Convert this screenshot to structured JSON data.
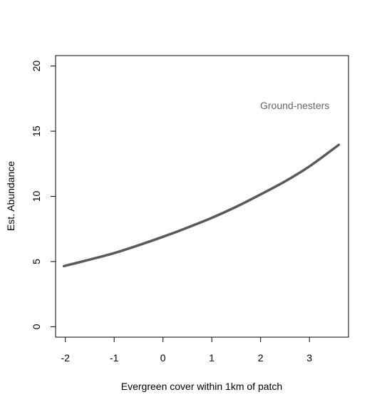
{
  "chart_data": {
    "type": "line",
    "title": "",
    "xlabel": "Evergreen cover within 1km of patch",
    "ylabel": "Est. Abundance",
    "xlim": [
      -2.2,
      3.8
    ],
    "ylim": [
      -0.8,
      20.8
    ],
    "x_ticks": [
      -2,
      -1,
      0,
      1,
      2,
      3
    ],
    "y_ticks": [
      0,
      5,
      10,
      15,
      20
    ],
    "x_tick_labels": [
      "-2",
      "-1",
      "0",
      "1",
      "2",
      "3"
    ],
    "y_tick_labels": [
      "0",
      "5",
      "10",
      "15",
      "20"
    ],
    "grid": false,
    "annotation": {
      "text": "Ground-nesters",
      "x": 2.7,
      "y": 16.7
    },
    "series": [
      {
        "line_color": "#5a5a5a",
        "x": [
          -2.03,
          -1.5,
          -1.0,
          -0.5,
          0.0,
          0.5,
          1.0,
          1.5,
          2.0,
          2.5,
          3.0,
          3.6
        ],
        "y": [
          4.65,
          5.15,
          5.65,
          6.25,
          6.9,
          7.6,
          8.35,
          9.2,
          10.15,
          11.15,
          12.3,
          13.95
        ]
      }
    ],
    "annotation_color": "#666666"
  }
}
